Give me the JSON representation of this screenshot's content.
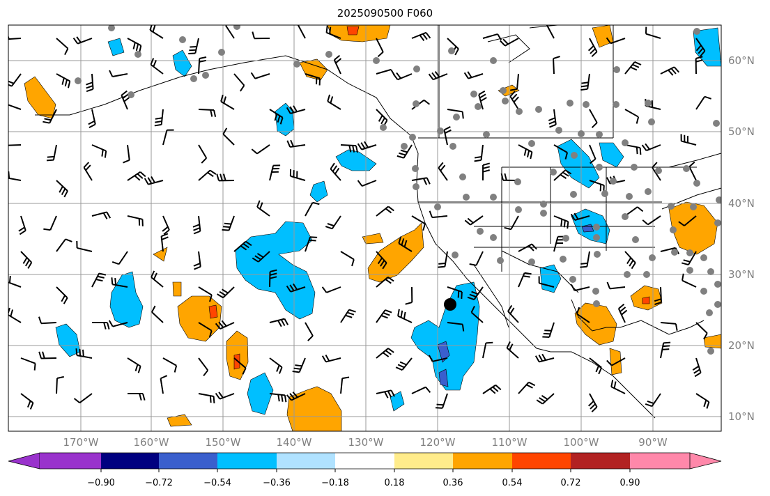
{
  "title": "2025090500 F060",
  "lon_labels": [
    "170°W",
    "160°W",
    "150°W",
    "140°W",
    "130°W",
    "120°W",
    "110°W",
    "100°W",
    "90°W"
  ],
  "lat_labels": [
    "60°N",
    "50°N",
    "40°N",
    "30°N",
    "20°N",
    "10°N"
  ],
  "colorbar": {
    "ticks": [
      "−0.90",
      "−0.72",
      "−0.54",
      "−0.36",
      "−0.18",
      "0.18",
      "0.36",
      "0.54",
      "0.72",
      "0.90"
    ],
    "colors": [
      "#9932CC",
      "#000080",
      "#3A5FCD",
      "#00BFFF",
      "#B0E2FF",
      "#FFFFFF",
      "#FFEC8B",
      "#FFA500",
      "#FF4500",
      "#B22222",
      "#FF88AA"
    ],
    "extend": "both"
  },
  "field_colors": {
    "neg_light": "#B0E2FF",
    "neg": "#00BFFF",
    "neg_strong": "#3A5FCD",
    "pos_light": "#FFEC8B",
    "pos": "#FFA500",
    "pos_strong": "#FF4500"
  }
}
